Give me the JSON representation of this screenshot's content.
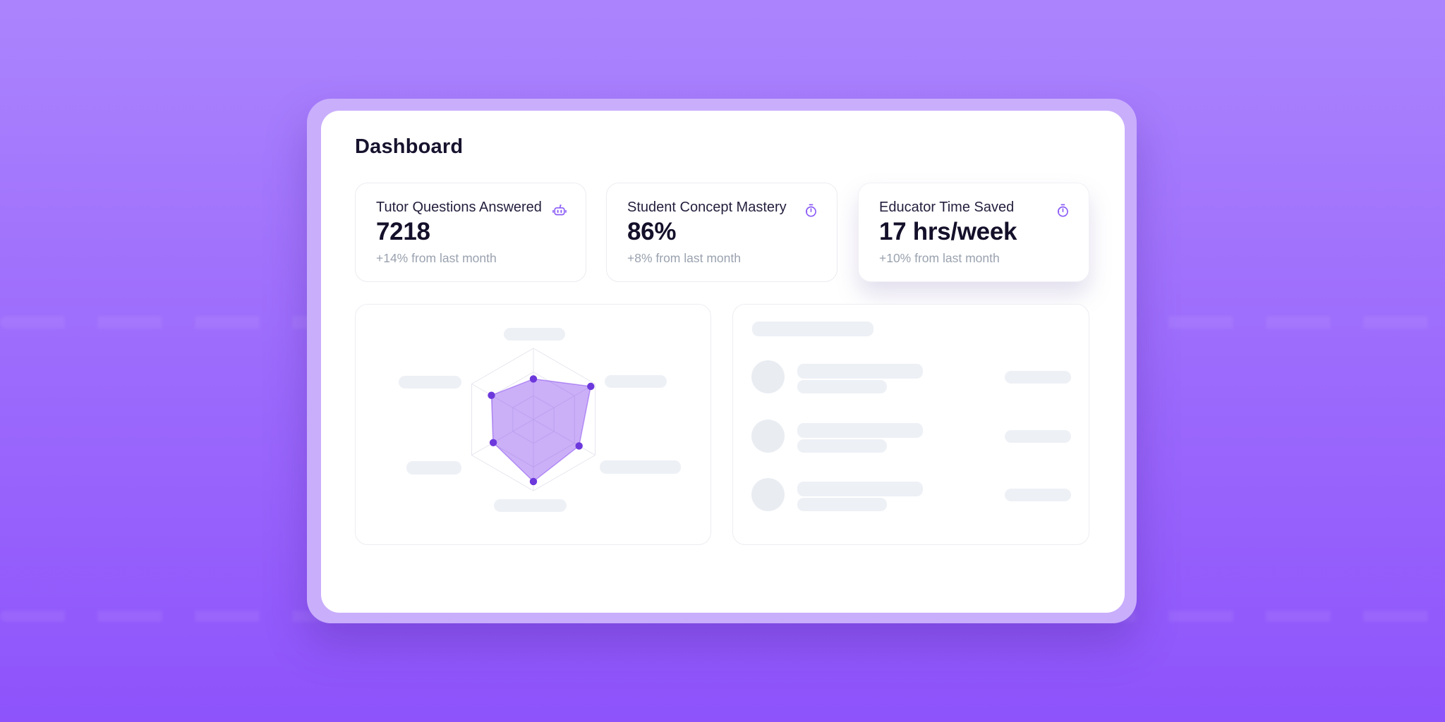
{
  "page": {
    "title": "Dashboard"
  },
  "stats": [
    {
      "label": "Tutor Questions Answered",
      "value": "7218",
      "delta": "+14% from last month",
      "icon": "robot"
    },
    {
      "label": "Student Concept Mastery",
      "value": "86%",
      "delta": "+8% from last month",
      "icon": "stopwatch"
    },
    {
      "label": "Educator Time Saved",
      "value": "17 hrs/week",
      "delta": "+10% from last month",
      "icon": "stopwatch"
    }
  ],
  "colors": {
    "accent_purple": "#8b5cf6",
    "background_top": "#ab84fd",
    "background_bottom": "#8e53fb",
    "frame_glow": "#c9aefc",
    "card_border": "#ececf1",
    "skeleton_fill": "#edf0f5",
    "heading_text": "#17122d",
    "value_text": "#14102a",
    "muted_text": "#9aa2af"
  },
  "chart_data": {
    "type": "radar",
    "title": "",
    "axes_count": 6,
    "axis_labels_visible": false,
    "axis_labels_note": "axis labels are grey skeleton placeholder bars, no text",
    "value_order": "clockwise-from-top",
    "values_pct": [
      57,
      93,
      74,
      87,
      65,
      68
    ],
    "value_max": 100,
    "grid_rings": 3,
    "grid_color": "#e7e5ee",
    "fill_color": "rgba(124,58,237,0.40)",
    "stroke_color": "rgba(124,58,237,0.45)",
    "dot_color": "#6c38dc",
    "dot_radius": 5.2,
    "legend": "none"
  },
  "list_panel": {
    "rows": 3,
    "content": "skeleton placeholders, no text"
  }
}
